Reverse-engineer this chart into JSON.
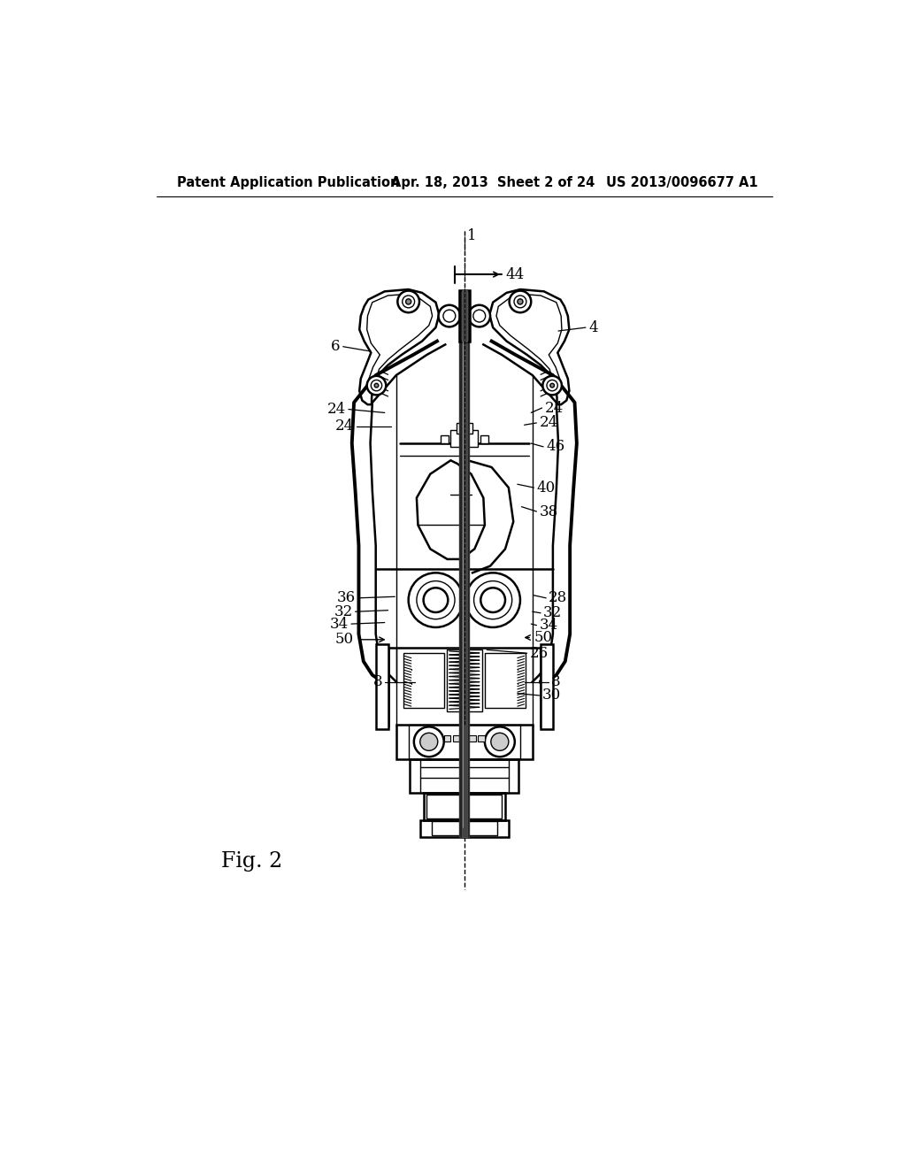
{
  "header_left": "Patent Application Publication",
  "header_center": "Apr. 18, 2013  Sheet 2 of 24",
  "header_right": "US 2013/0096677 A1",
  "figure_label": "Fig. 2",
  "background_color": "#ffffff",
  "header_fontsize": 10.5,
  "label_fontsize": 12,
  "fig_label_fontsize": 17
}
